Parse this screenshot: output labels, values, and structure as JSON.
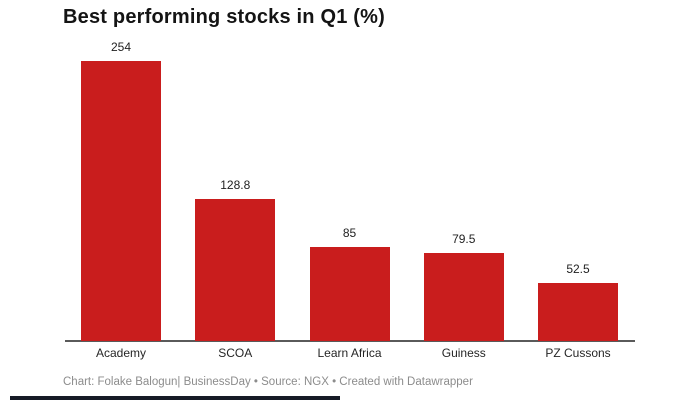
{
  "title": "Best performing stocks in Q1 (%)",
  "footer": "Chart: Folake Balogun| BusinessDay • Source: NGX • Created with Datawrapper",
  "colors": {
    "bar": "#c91d1d",
    "axis": "#5a5a5a",
    "title_text": "#141414",
    "value_text": "#1f1f1f",
    "category_text": "#262626",
    "footer_text": "#8c8c8c",
    "bottom_bar": "#161a26",
    "background": "#ffffff"
  },
  "chart_data": {
    "type": "bar",
    "title": "Best performing stocks in Q1 (%)",
    "categories": [
      "Academy",
      "SCOA",
      "Learn Africa",
      "Guiness",
      "PZ Cussons"
    ],
    "values": [
      254,
      128.8,
      85,
      79.5,
      52.5
    ],
    "value_labels": [
      "254",
      "128.8",
      "85",
      "79.5",
      "52.5"
    ],
    "xlabel": "",
    "ylabel": "",
    "ylim": [
      0,
      254
    ],
    "grid": false,
    "legend": false,
    "bar_color": "#c91d1d",
    "attribution": "Chart: Folake Balogun| BusinessDay • Source: NGX • Created with Datawrapper"
  }
}
